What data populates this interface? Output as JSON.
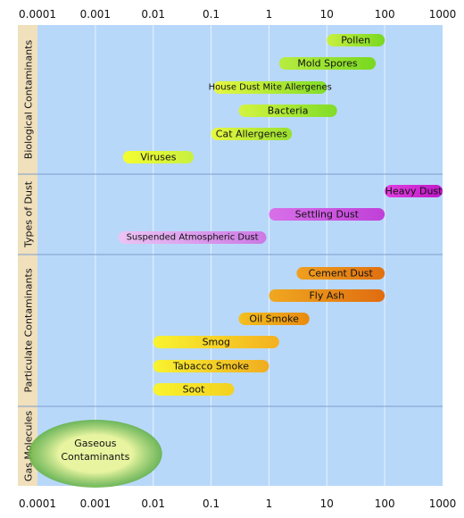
{
  "chart_data": {
    "type": "bar",
    "x_scale": "log",
    "xlim": [
      0.0001,
      1000
    ],
    "x_ticks": [
      "0.0001",
      "0.001",
      "0.01",
      "0.1",
      "1",
      "10",
      "100",
      "1000"
    ],
    "grid": "vertical",
    "categories": [
      {
        "name": "Biological Contaminants",
        "items": [
          {
            "label": "Pollen",
            "min": 10,
            "max": 100,
            "color_start": "#c8f040",
            "color_end": "#78d820"
          },
          {
            "label": "Mold Spores",
            "min": 1.5,
            "max": 70,
            "color_start": "#b8ec40",
            "color_end": "#78d820"
          },
          {
            "label": "House Dust Mite Allergenes",
            "min": 0.11,
            "max": 10,
            "color_start": "#e8f840",
            "color_end": "#80dc28"
          },
          {
            "label": "Bacteria",
            "min": 0.3,
            "max": 15,
            "color_start": "#d4f440",
            "color_end": "#80dc28"
          },
          {
            "label": "Cat Allergenes",
            "min": 0.1,
            "max": 2.5,
            "color_start": "#e8f840",
            "color_end": "#98e030"
          },
          {
            "label": "Viruses",
            "min": 0.003,
            "max": 0.05,
            "color_start": "#f4fc30",
            "color_end": "#c8f040"
          }
        ]
      },
      {
        "name": "Types of Dust",
        "items": [
          {
            "label": "Heavy Dust",
            "min": 100,
            "max": 1000,
            "color_start": "#e040e0",
            "color_end": "#c018c8"
          },
          {
            "label": "Settling Dust",
            "min": 1,
            "max": 100,
            "color_start": "#d870e8",
            "color_end": "#c040d8"
          },
          {
            "label": "Suspended Atmospheric Dust",
            "min": 0.0025,
            "max": 0.9,
            "color_start": "#ecc4f4",
            "color_end": "#cc78e4"
          }
        ]
      },
      {
        "name": "Particulate Contaminants",
        "items": [
          {
            "label": "Cement Dust",
            "min": 3,
            "max": 100,
            "color_start": "#f0a020",
            "color_end": "#e07010"
          },
          {
            "label": "Fly Ash",
            "min": 1,
            "max": 100,
            "color_start": "#f0a820",
            "color_end": "#e06c10"
          },
          {
            "label": "Oil Smoke",
            "min": 0.3,
            "max": 5,
            "color_start": "#f4c020",
            "color_end": "#e88a10"
          },
          {
            "label": "Smog",
            "min": 0.01,
            "max": 1.5,
            "color_start": "#f8f430",
            "color_end": "#f4b020"
          },
          {
            "label": "Tabacco Smoke",
            "min": 0.01,
            "max": 1,
            "color_start": "#f8f430",
            "color_end": "#f0ac20"
          },
          {
            "label": "Soot",
            "min": 0.01,
            "max": 0.25,
            "color_start": "#f8f430",
            "color_end": "#f4d020"
          }
        ]
      },
      {
        "name": "Gas Molecules",
        "items": [
          {
            "label": "Gaseous Contaminants",
            "label_lines": [
              "Gaseous",
              "Contaminants"
            ],
            "min": 0.0001,
            "max": 0.01,
            "shape": "ellipse",
            "color_start": "#e8f4a0",
            "color_end": "#60b040"
          }
        ]
      }
    ],
    "colors": {
      "plot_bg": "#b8d8fa",
      "category_bg": "#f0e0bc",
      "grid": "#e8f2ff",
      "separator": "#7c9ccc"
    }
  }
}
